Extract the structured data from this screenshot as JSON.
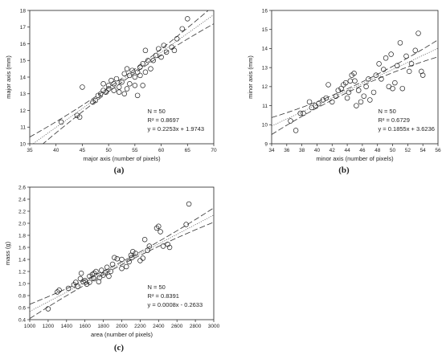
{
  "chart_data": [
    {
      "type": "scatter",
      "panel_label": "(a)",
      "xlabel": "major axis (number of pixels)",
      "ylabel": "major axis (mm)",
      "xlim": [
        35,
        70
      ],
      "ylim": [
        10,
        18
      ],
      "xticks": [
        35,
        40,
        45,
        50,
        55,
        60,
        65,
        70
      ],
      "yticks": [
        10,
        11,
        12,
        13,
        14,
        15,
        16,
        17,
        18
      ],
      "stats": [
        "N = 50",
        "R² = 0.8697",
        "y = 0.2253x + 1.9743"
      ],
      "slope": 0.2253,
      "intercept": 1.9743,
      "band": 0.55,
      "points": [
        [
          41,
          11.3
        ],
        [
          44,
          11.7
        ],
        [
          44.5,
          11.6
        ],
        [
          45,
          13.4
        ],
        [
          47,
          12.5
        ],
        [
          47.5,
          12.6
        ],
        [
          48,
          12.9
        ],
        [
          48.5,
          13.0
        ],
        [
          49,
          13.2
        ],
        [
          49,
          13.6
        ],
        [
          49.5,
          13.1
        ],
        [
          50,
          13.3
        ],
        [
          50,
          13.5
        ],
        [
          50.5,
          13.8
        ],
        [
          51,
          13.2
        ],
        [
          51,
          13.6
        ],
        [
          51.5,
          13.9
        ],
        [
          52,
          13.1
        ],
        [
          52,
          13.4
        ],
        [
          52.5,
          13.7
        ],
        [
          53,
          13.0
        ],
        [
          53,
          14.2
        ],
        [
          53.5,
          13.3
        ],
        [
          54,
          13.6
        ],
        [
          54,
          14.1
        ],
        [
          54.5,
          14.4
        ],
        [
          55,
          13.5
        ],
        [
          55,
          14.0
        ],
        [
          55.5,
          14.3
        ],
        [
          56,
          14.6
        ],
        [
          56,
          14.1
        ],
        [
          56.5,
          14.8
        ],
        [
          57,
          14.3
        ],
        [
          57.5,
          15.0
        ],
        [
          56.5,
          13.5
        ],
        [
          55.5,
          12.9
        ],
        [
          58,
          14.5
        ],
        [
          57,
          15.6
        ],
        [
          58.5,
          15.0
        ],
        [
          59,
          15.3
        ],
        [
          59.5,
          15.7
        ],
        [
          60,
          15.2
        ],
        [
          60.5,
          15.9
        ],
        [
          61,
          15.5
        ],
        [
          62,
          15.8
        ],
        [
          62.5,
          15.6
        ],
        [
          63,
          16.3
        ],
        [
          64,
          16.9
        ],
        [
          65,
          17.5
        ],
        [
          53.5,
          14.5
        ]
      ]
    },
    {
      "type": "scatter",
      "panel_label": "(b)",
      "xlabel": "minor axis (number of pixels)",
      "ylabel": "minor axis (mm)",
      "xlim": [
        34,
        56
      ],
      "ylim": [
        9,
        16
      ],
      "xticks": [
        34,
        36,
        38,
        40,
        42,
        44,
        46,
        48,
        50,
        52,
        54,
        56
      ],
      "yticks": [
        9,
        10,
        11,
        12,
        13,
        14,
        15,
        16
      ],
      "stats": [
        "N = 50",
        "R² = 0.6729",
        "y = 0.1855x + 3.6236"
      ],
      "slope": 0.1855,
      "intercept": 3.6236,
      "band": 0.45,
      "points": [
        [
          36.5,
          10.2
        ],
        [
          37.2,
          9.7
        ],
        [
          37.8,
          10.6
        ],
        [
          38.2,
          10.6
        ],
        [
          39,
          11.2
        ],
        [
          39.3,
          10.9
        ],
        [
          39.8,
          11.0
        ],
        [
          40.2,
          11.1
        ],
        [
          40.8,
          11.3
        ],
        [
          41.2,
          11.4
        ],
        [
          41.5,
          12.1
        ],
        [
          42,
          11.2
        ],
        [
          42.5,
          11.5
        ],
        [
          42.8,
          11.8
        ],
        [
          43.2,
          11.9
        ],
        [
          43.5,
          12.1
        ],
        [
          43.8,
          12.2
        ],
        [
          44,
          11.4
        ],
        [
          44.2,
          11.7
        ],
        [
          44.4,
          12.3
        ],
        [
          44.6,
          12.6
        ],
        [
          44.9,
          12.7
        ],
        [
          45.2,
          11.0
        ],
        [
          45.5,
          11.8
        ],
        [
          45.8,
          11.2
        ],
        [
          46.2,
          11.5
        ],
        [
          46.5,
          12.0
        ],
        [
          47,
          11.3
        ],
        [
          47.5,
          11.7
        ],
        [
          47.8,
          12.6
        ],
        [
          48.2,
          13.2
        ],
        [
          48.5,
          12.4
        ],
        [
          48.8,
          12.9
        ],
        [
          49.1,
          13.5
        ],
        [
          49.5,
          12.0
        ],
        [
          49.8,
          13.7
        ],
        [
          50,
          11.9
        ],
        [
          50.3,
          12.2
        ],
        [
          50.6,
          13.1
        ],
        [
          51,
          14.3
        ],
        [
          51.3,
          11.9
        ],
        [
          51.8,
          13.6
        ],
        [
          52.2,
          12.8
        ],
        [
          52.5,
          13.2
        ],
        [
          53,
          13.9
        ],
        [
          53.4,
          14.8
        ],
        [
          53.8,
          12.8
        ],
        [
          54,
          12.6
        ],
        [
          45,
          12.3
        ],
        [
          46.8,
          12.4
        ]
      ]
    },
    {
      "type": "scatter",
      "panel_label": "(c)",
      "xlabel": "area (number of pixels)",
      "ylabel": "mass (g)",
      "xlim": [
        1000,
        3000
      ],
      "ylim": [
        0.4,
        2.6
      ],
      "xticks": [
        1000,
        1200,
        1400,
        1600,
        1800,
        2000,
        2200,
        2400,
        2600,
        2800,
        3000
      ],
      "yticks": [
        0.4,
        0.6,
        0.8,
        1.0,
        1.2,
        1.4,
        1.6,
        1.8,
        2.0,
        2.2,
        2.4,
        2.6
      ],
      "stats": [
        "N = 50",
        "R² = 0.8391",
        "y = 0.0008x - 0.2633"
      ],
      "slope": 0.0008,
      "intercept": -0.2633,
      "band": 0.12,
      "points": [
        [
          1200,
          0.58
        ],
        [
          1300,
          0.86
        ],
        [
          1320,
          0.89
        ],
        [
          1420,
          0.92
        ],
        [
          1480,
          0.98
        ],
        [
          1500,
          1.02
        ],
        [
          1520,
          0.95
        ],
        [
          1550,
          1.08
        ],
        [
          1560,
          1.17
        ],
        [
          1580,
          1.03
        ],
        [
          1600,
          1.05
        ],
        [
          1620,
          0.99
        ],
        [
          1650,
          1.12
        ],
        [
          1680,
          1.15
        ],
        [
          1700,
          1.08
        ],
        [
          1720,
          1.2
        ],
        [
          1750,
          1.03
        ],
        [
          1760,
          1.1
        ],
        [
          1780,
          1.22
        ],
        [
          1800,
          1.14
        ],
        [
          1820,
          1.18
        ],
        [
          1840,
          1.27
        ],
        [
          1860,
          1.12
        ],
        [
          1880,
          1.2
        ],
        [
          1900,
          1.32
        ],
        [
          1920,
          1.43
        ],
        [
          1950,
          1.41
        ],
        [
          2000,
          1.25
        ],
        [
          2050,
          1.28
        ],
        [
          2080,
          1.36
        ],
        [
          2100,
          1.47
        ],
        [
          2120,
          1.53
        ],
        [
          2150,
          1.5
        ],
        [
          2200,
          1.38
        ],
        [
          2230,
          1.42
        ],
        [
          2250,
          1.73
        ],
        [
          2280,
          1.55
        ],
        [
          2300,
          1.62
        ],
        [
          2380,
          1.92
        ],
        [
          2400,
          1.95
        ],
        [
          2420,
          1.86
        ],
        [
          2450,
          1.62
        ],
        [
          2500,
          1.65
        ],
        [
          2520,
          1.6
        ],
        [
          2700,
          1.98
        ],
        [
          2730,
          2.32
        ],
        [
          1650,
          1.02
        ],
        [
          2000,
          1.4
        ],
        [
          2110,
          1.43
        ],
        [
          1700,
          1.17
        ]
      ]
    }
  ]
}
